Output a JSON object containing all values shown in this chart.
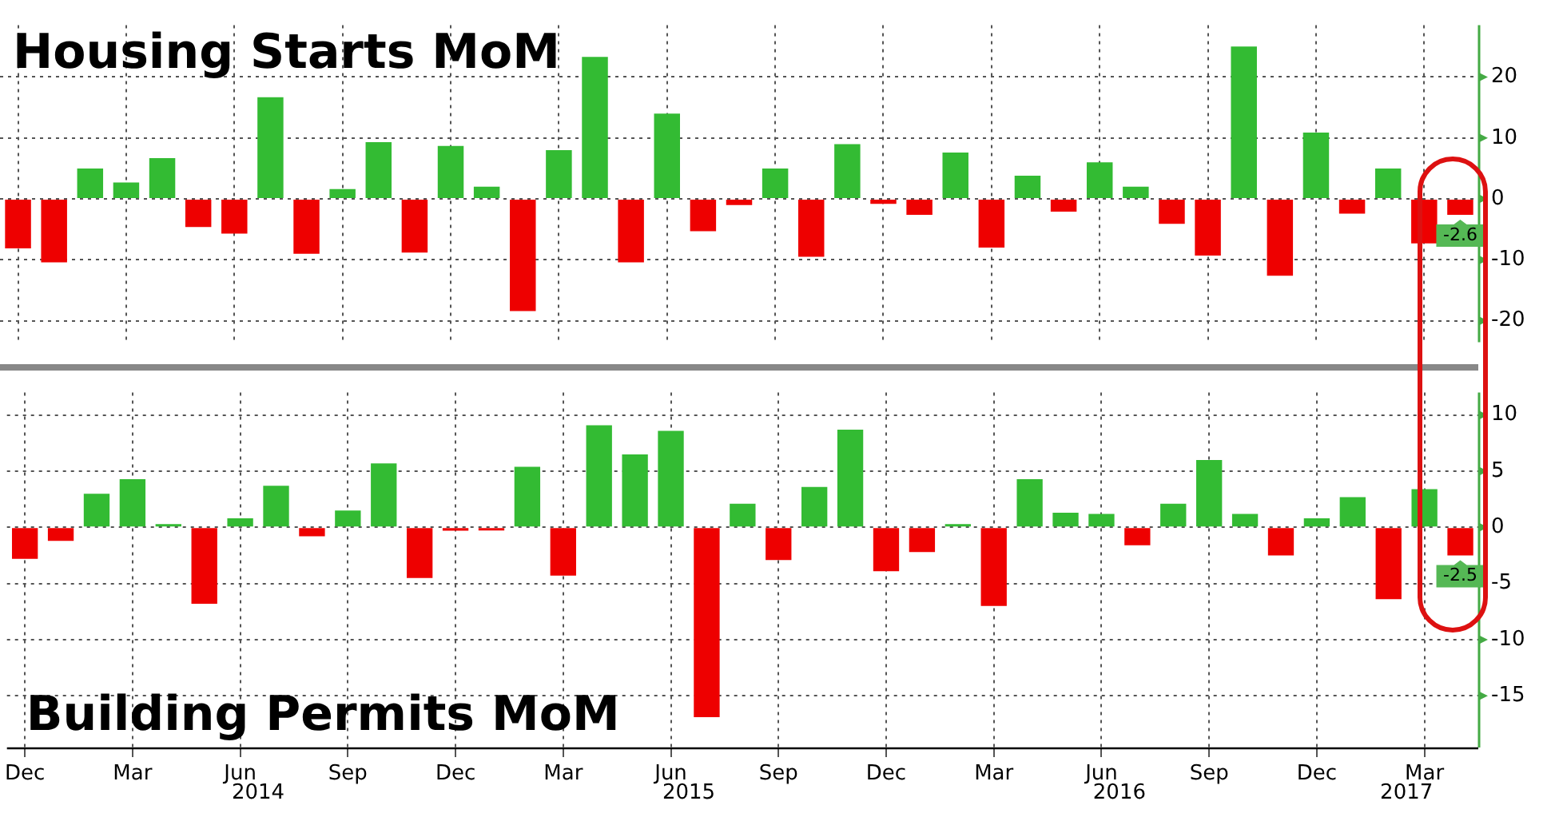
{
  "chart_data": [
    {
      "type": "bar",
      "title": "Housing Starts MoM",
      "categories": [
        null,
        null,
        null,
        null,
        null,
        null,
        null,
        null,
        null,
        null,
        null,
        null,
        null,
        null,
        null,
        null,
        null,
        null,
        null,
        null,
        null,
        null,
        null,
        null,
        null,
        null,
        null,
        null,
        null,
        null,
        null,
        null,
        null,
        null,
        null,
        null,
        null,
        null,
        null,
        null,
        null
      ],
      "values": [
        -8.1,
        -10.4,
        5.0,
        2.7,
        6.7,
        -4.6,
        -5.7,
        16.7,
        -9.0,
        1.6,
        9.3,
        -8.8,
        8.7,
        2.0,
        -18.4,
        8.0,
        23.3,
        -10.4,
        14.0,
        -5.3,
        -1.0,
        5.0,
        -9.5,
        9.0,
        -0.8,
        -2.6,
        7.6,
        -8.0,
        3.8,
        -2.1,
        6.0,
        2.0,
        -4.1,
        -9.3,
        25.0,
        -12.6,
        10.9,
        -2.4,
        5.0,
        -7.3,
        -2.6
      ],
      "colors": [
        "#ee0000",
        "#ee0000",
        "#33bb33",
        "#33bb33",
        "#33bb33",
        "#ee0000",
        "#ee0000",
        "#33bb33",
        "#ee0000",
        "#33bb33",
        "#33bb33",
        "#ee0000",
        "#33bb33",
        "#33bb33",
        "#ee0000",
        "#33bb33",
        "#33bb33",
        "#ee0000",
        "#33bb33",
        "#ee0000",
        "#ee0000",
        "#33bb33",
        "#ee0000",
        "#33bb33",
        "#ee0000",
        "#ee0000",
        "#33bb33",
        "#ee0000",
        "#33bb33",
        "#ee0000",
        "#33bb33",
        "#33bb33",
        "#ee0000",
        "#ee0000",
        "#33bb33",
        "#ee0000",
        "#33bb33",
        "#ee0000",
        "#33bb33",
        "#ee0000",
        "#ee0000"
      ],
      "value_labels": [
        null,
        null,
        null,
        null,
        null,
        null,
        null,
        null,
        null,
        null,
        null,
        null,
        null,
        null,
        null,
        null,
        null,
        null,
        null,
        null,
        null,
        null,
        null,
        null,
        null,
        null,
        null,
        null,
        null,
        null,
        null,
        null,
        null,
        null,
        null,
        null,
        null,
        null,
        null,
        null,
        "-2.6"
      ],
      "ylim": [
        -23.5,
        28.5
      ],
      "yticks": [
        -20,
        -10,
        0,
        10,
        20
      ],
      "grid": true,
      "tick_labels": "y"
    },
    {
      "type": "bar",
      "title": "Building Permits MoM",
      "categories": [
        "Dec",
        null,
        null,
        "Mar",
        null,
        null,
        "Jun",
        null,
        null,
        "Sep",
        null,
        null,
        "Dec",
        null,
        null,
        "Mar",
        null,
        null,
        "Jun",
        null,
        null,
        "Sep",
        null,
        null,
        "Dec",
        null,
        null,
        "Mar",
        null,
        null,
        "Jun",
        null,
        null,
        "Sep",
        null,
        null,
        "Dec",
        null,
        null,
        "Mar",
        null
      ],
      "annotations": [
        "2014",
        "2015",
        "2016",
        "2017"
      ],
      "values": [
        -2.8,
        -1.2,
        3.0,
        4.3,
        0.1,
        -6.8,
        0.8,
        3.7,
        -0.8,
        1.5,
        5.7,
        -4.5,
        -0.3,
        -0.1,
        5.4,
        -4.3,
        9.1,
        6.5,
        8.6,
        -16.9,
        2.1,
        -2.9,
        3.6,
        8.7,
        -3.9,
        -2.2,
        0.1,
        -7.0,
        4.3,
        1.3,
        1.2,
        -1.6,
        2.1,
        6.0,
        1.2,
        -2.5,
        0.8,
        2.7,
        -6.4,
        3.4,
        -2.5
      ],
      "colors": [
        "#ee0000",
        "#ee0000",
        "#33bb33",
        "#33bb33",
        "#33bb33",
        "#ee0000",
        "#33bb33",
        "#33bb33",
        "#ee0000",
        "#33bb33",
        "#33bb33",
        "#ee0000",
        "#ee0000",
        "#ee0000",
        "#33bb33",
        "#ee0000",
        "#33bb33",
        "#33bb33",
        "#33bb33",
        "#ee0000",
        "#33bb33",
        "#ee0000",
        "#33bb33",
        "#33bb33",
        "#ee0000",
        "#ee0000",
        "#33bb33",
        "#ee0000",
        "#33bb33",
        "#33bb33",
        "#33bb33",
        "#ee0000",
        "#33bb33",
        "#33bb33",
        "#33bb33",
        "#ee0000",
        "#33bb33",
        "#33bb33",
        "#ee0000",
        "#33bb33",
        "#ee0000"
      ],
      "value_labels": [
        null,
        null,
        null,
        null,
        null,
        null,
        null,
        null,
        null,
        null,
        null,
        null,
        null,
        null,
        null,
        null,
        null,
        null,
        null,
        null,
        null,
        null,
        null,
        null,
        null,
        null,
        null,
        null,
        null,
        null,
        null,
        null,
        null,
        null,
        null,
        null,
        null,
        null,
        null,
        null,
        "-2.5"
      ],
      "ylim": [
        -19.6,
        12.0
      ],
      "yticks": [
        -15,
        -10,
        -5,
        0,
        5,
        10
      ],
      "grid": true
    }
  ]
}
